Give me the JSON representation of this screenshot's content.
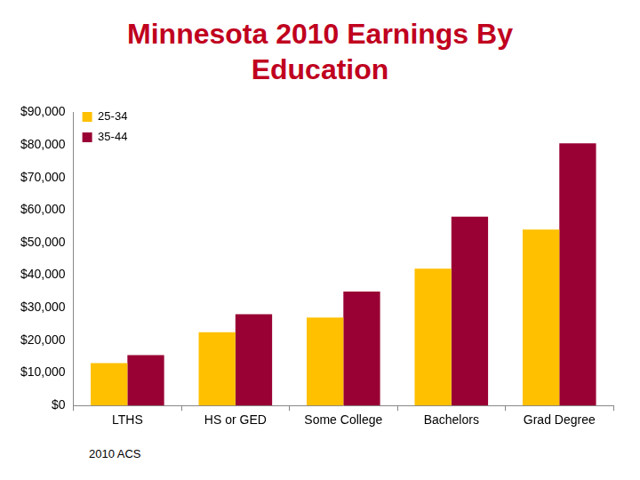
{
  "chart_data": {
    "type": "bar",
    "title": "Minnesota 2010 Earnings By Education",
    "source": "2010 ACS",
    "categories": [
      "LTHS",
      "HS or GED",
      "Some College",
      "Bachelors",
      "Grad Degree"
    ],
    "series": [
      {
        "name": "25-34",
        "color": "#FFC000",
        "values": [
          13000,
          22500,
          27000,
          42000,
          54000
        ]
      },
      {
        "name": "35-44",
        "color": "#990033",
        "values": [
          15500,
          28000,
          35000,
          58000,
          80500
        ]
      }
    ],
    "ylim": [
      0,
      90000
    ],
    "yticks": [
      {
        "value": 0,
        "label": "$0"
      },
      {
        "value": 10000,
        "label": "$10,000"
      },
      {
        "value": 20000,
        "label": "$20,000"
      },
      {
        "value": 30000,
        "label": "$30,000"
      },
      {
        "value": 40000,
        "label": "$40,000"
      },
      {
        "value": 50000,
        "label": "$50,000"
      },
      {
        "value": 60000,
        "label": "$60,000"
      },
      {
        "value": 70000,
        "label": "$70,000"
      },
      {
        "value": 80000,
        "label": "$80,000"
      },
      {
        "value": 90000,
        "label": "$90,000"
      }
    ],
    "grid": false,
    "legend": "upper left"
  }
}
